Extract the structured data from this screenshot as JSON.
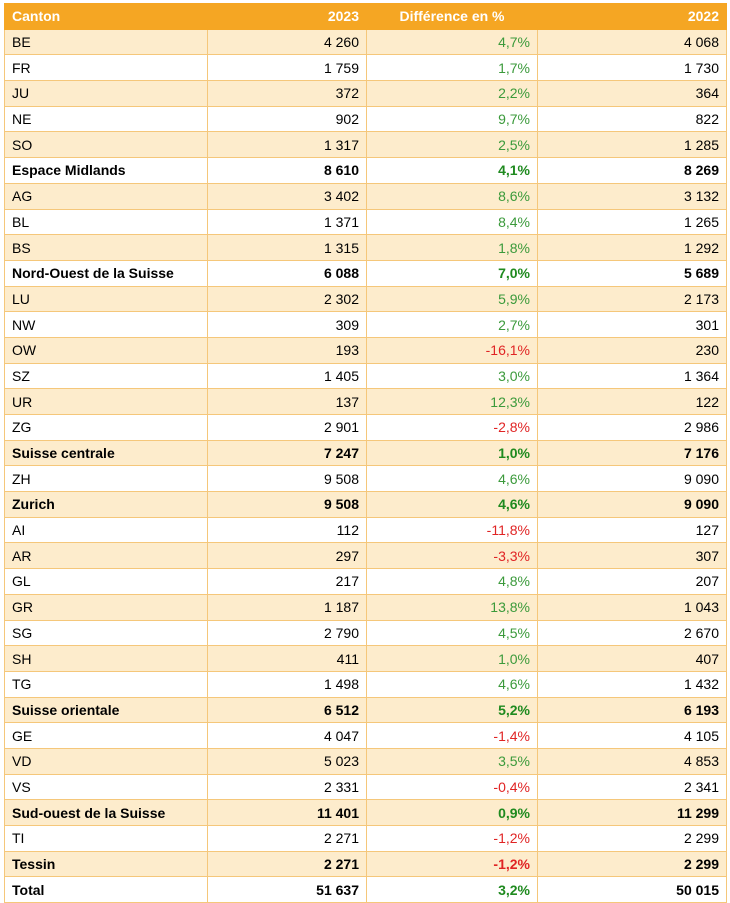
{
  "table": {
    "headers": [
      "Canton",
      "2023",
      "Différence en %",
      "2022"
    ],
    "rows": [
      {
        "canton": "BE",
        "v2023": "4 260",
        "diff": "4,7%",
        "v2022": "4 068",
        "sign": "pos",
        "subtotal": false
      },
      {
        "canton": "FR",
        "v2023": "1 759",
        "diff": "1,7%",
        "v2022": "1 730",
        "sign": "pos",
        "subtotal": false
      },
      {
        "canton": "JU",
        "v2023": "372",
        "diff": "2,2%",
        "v2022": "364",
        "sign": "pos",
        "subtotal": false
      },
      {
        "canton": "NE",
        "v2023": "902",
        "diff": "9,7%",
        "v2022": "822",
        "sign": "pos",
        "subtotal": false
      },
      {
        "canton": "SO",
        "v2023": "1 317",
        "diff": "2,5%",
        "v2022": "1 285",
        "sign": "pos",
        "subtotal": false
      },
      {
        "canton": "Espace Midlands",
        "v2023": "8 610",
        "diff": "4,1%",
        "v2022": "8 269",
        "sign": "pos",
        "subtotal": true
      },
      {
        "canton": "AG",
        "v2023": "3 402",
        "diff": "8,6%",
        "v2022": "3 132",
        "sign": "pos",
        "subtotal": false
      },
      {
        "canton": "BL",
        "v2023": "1 371",
        "diff": "8,4%",
        "v2022": "1 265",
        "sign": "pos",
        "subtotal": false
      },
      {
        "canton": "BS",
        "v2023": "1 315",
        "diff": "1,8%",
        "v2022": "1 292",
        "sign": "pos",
        "subtotal": false
      },
      {
        "canton": "Nord-Ouest de la Suisse",
        "v2023": "6 088",
        "diff": "7,0%",
        "v2022": "5 689",
        "sign": "pos",
        "subtotal": true
      },
      {
        "canton": "LU",
        "v2023": "2 302",
        "diff": "5,9%",
        "v2022": "2 173",
        "sign": "pos",
        "subtotal": false
      },
      {
        "canton": "NW",
        "v2023": "309",
        "diff": "2,7%",
        "v2022": "301",
        "sign": "pos",
        "subtotal": false
      },
      {
        "canton": "OW",
        "v2023": "193",
        "diff": "-16,1%",
        "v2022": "230",
        "sign": "neg",
        "subtotal": false
      },
      {
        "canton": "SZ",
        "v2023": "1 405",
        "diff": "3,0%",
        "v2022": "1 364",
        "sign": "pos",
        "subtotal": false
      },
      {
        "canton": "UR",
        "v2023": "137",
        "diff": "12,3%",
        "v2022": "122",
        "sign": "pos",
        "subtotal": false
      },
      {
        "canton": "ZG",
        "v2023": "2 901",
        "diff": "-2,8%",
        "v2022": "2 986",
        "sign": "neg",
        "subtotal": false
      },
      {
        "canton": "Suisse centrale",
        "v2023": "7 247",
        "diff": "1,0%",
        "v2022": "7 176",
        "sign": "pos",
        "subtotal": true
      },
      {
        "canton": "ZH",
        "v2023": "9 508",
        "diff": "4,6%",
        "v2022": "9 090",
        "sign": "pos",
        "subtotal": false
      },
      {
        "canton": "Zurich",
        "v2023": "9 508",
        "diff": "4,6%",
        "v2022": "9 090",
        "sign": "pos",
        "subtotal": true
      },
      {
        "canton": "AI",
        "v2023": "112",
        "diff": "-11,8%",
        "v2022": "127",
        "sign": "neg",
        "subtotal": false
      },
      {
        "canton": "AR",
        "v2023": "297",
        "diff": "-3,3%",
        "v2022": "307",
        "sign": "neg",
        "subtotal": false
      },
      {
        "canton": "GL",
        "v2023": "217",
        "diff": "4,8%",
        "v2022": "207",
        "sign": "pos",
        "subtotal": false
      },
      {
        "canton": "GR",
        "v2023": "1 187",
        "diff": "13,8%",
        "v2022": "1 043",
        "sign": "pos",
        "subtotal": false
      },
      {
        "canton": "SG",
        "v2023": "2 790",
        "diff": "4,5%",
        "v2022": "2 670",
        "sign": "pos",
        "subtotal": false
      },
      {
        "canton": "SH",
        "v2023": "411",
        "diff": "1,0%",
        "v2022": "407",
        "sign": "pos",
        "subtotal": false
      },
      {
        "canton": "TG",
        "v2023": "1 498",
        "diff": "4,6%",
        "v2022": "1 432",
        "sign": "pos",
        "subtotal": false
      },
      {
        "canton": "Suisse orientale",
        "v2023": "6 512",
        "diff": "5,2%",
        "v2022": "6 193",
        "sign": "pos",
        "subtotal": true
      },
      {
        "canton": "GE",
        "v2023": "4 047",
        "diff": "-1,4%",
        "v2022": "4 105",
        "sign": "neg",
        "subtotal": false
      },
      {
        "canton": "VD",
        "v2023": "5 023",
        "diff": "3,5%",
        "v2022": "4 853",
        "sign": "pos",
        "subtotal": false
      },
      {
        "canton": "VS",
        "v2023": "2 331",
        "diff": "-0,4%",
        "v2022": "2 341",
        "sign": "neg",
        "subtotal": false
      },
      {
        "canton": "Sud-ouest de la Suisse",
        "v2023": "11 401",
        "diff": "0,9%",
        "v2022": "11 299",
        "sign": "pos",
        "subtotal": true
      },
      {
        "canton": "TI",
        "v2023": "2 271",
        "diff": "-1,2%",
        "v2022": "2 299",
        "sign": "neg",
        "subtotal": false
      },
      {
        "canton": "Tessin",
        "v2023": "2 271",
        "diff": "-1,2%",
        "v2022": "2 299",
        "sign": "neg",
        "subtotal": true
      }
    ],
    "total": {
      "canton": "Total",
      "v2023": "51 637",
      "diff": "3,2%",
      "v2022": "50 015",
      "sign": "pos"
    }
  },
  "colors": {
    "header_bg": "#f5a623",
    "stripe_bg": "#fdeccc",
    "positive": "#3b9a3b",
    "negative": "#e02424"
  }
}
